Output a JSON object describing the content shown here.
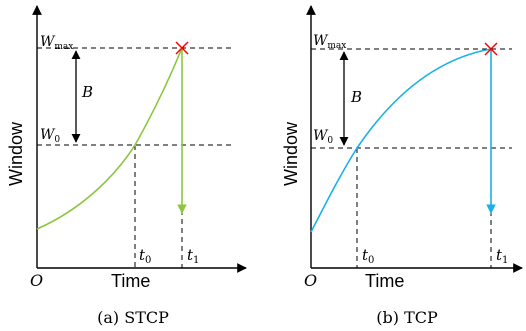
{
  "colors": {
    "axis": "#000000",
    "dashed": "#000000",
    "stcp_curve": "#8cc63f",
    "tcp_curve": "#1ab0e8",
    "cross": "#ff0000"
  },
  "panels": [
    {
      "caption": "(a) STCP",
      "y_axis_label": "Window",
      "x_axis_label": "Time",
      "origin_label": "O",
      "wmax_label": "W",
      "wmax_sub": "max",
      "w0_label": "W",
      "w0_sub": "0",
      "b_label": "B",
      "t0_label": "t",
      "t0_sub": "0",
      "t1_label": "t",
      "t1_sub": "1"
    },
    {
      "caption": "(b) TCP",
      "y_axis_label": "Window",
      "x_axis_label": "Time",
      "origin_label": "O",
      "wmax_label": "W",
      "wmax_sub": "max",
      "w0_label": "W",
      "w0_sub": "0",
      "b_label": "B",
      "t0_label": "t",
      "t0_sub": "0",
      "t1_label": "t",
      "t1_sub": "1"
    }
  ],
  "icons": [
    "cross-marker-icon",
    "down-arrow-icon"
  ]
}
